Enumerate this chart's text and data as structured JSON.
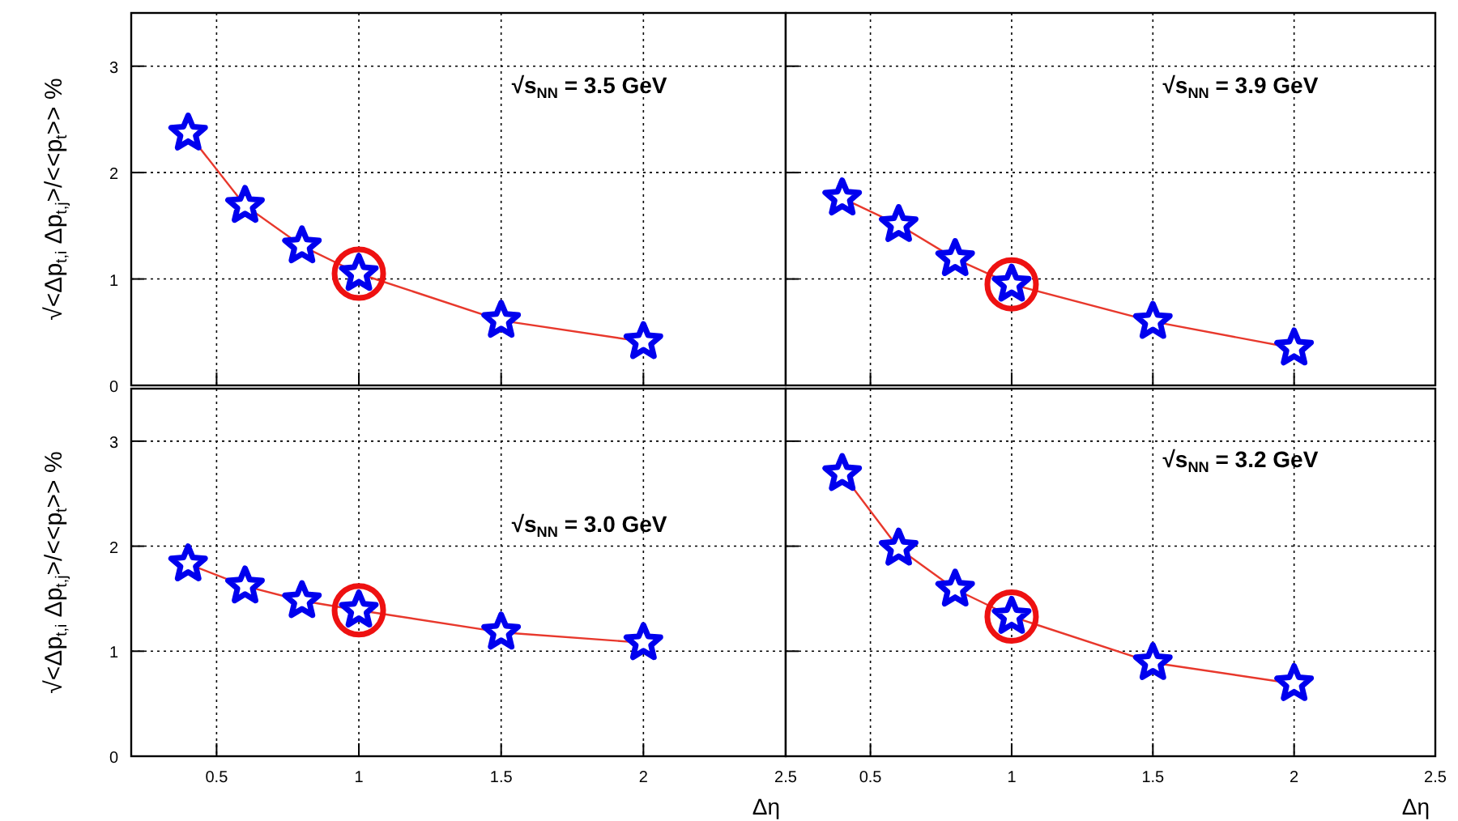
{
  "chart_data": [
    {
      "type": "line",
      "title": "√s$_{NN}$ = 3.5 GeV",
      "ylabel": "√<Δp$_{t,i}$ Δp$_{t,j}$>/<<p$_{t}$>> %",
      "x": [
        0.4,
        0.6,
        0.8,
        1.0,
        1.5,
        2.0
      ],
      "series": [
        {
          "color": "#0000ee",
          "values": [
            2.37,
            1.69,
            1.31,
            1.05,
            0.61,
            0.41
          ]
        }
      ],
      "xlim": [
        0.2,
        2.5
      ],
      "xticks": [
        0.5,
        1,
        1.5,
        2,
        2.5
      ],
      "ylim": [
        0,
        3.5
      ],
      "yticks": [
        0,
        1,
        2,
        3
      ],
      "tick_labels": "y",
      "grid": true,
      "marker": "star"
    },
    {
      "type": "line",
      "title": "√s$_{NN}$ = 3.9 GeV",
      "x": [
        0.4,
        0.6,
        0.8,
        1.0,
        1.5,
        2.0
      ],
      "series": [
        {
          "color": "#0000ee",
          "values": [
            1.76,
            1.51,
            1.19,
            0.95,
            0.6,
            0.35
          ]
        }
      ],
      "xlim": [
        0.2,
        2.5
      ],
      "xticks": [
        0.5,
        1,
        1.5,
        2,
        2.5
      ],
      "ylim": [
        0,
        3.5
      ],
      "yticks": [
        0,
        1,
        2,
        3
      ],
      "tick_labels": false,
      "grid": true,
      "marker": "star"
    },
    {
      "type": "line",
      "title": "√s$_{NN}$ = 3.0 GeV",
      "xlabel": "Δη",
      "ylabel": "√<Δp$_{t,i}$ Δp$_{t,j}$>/<<p$_{t}$>> %",
      "x": [
        0.4,
        0.6,
        0.8,
        1.0,
        1.5,
        2.0
      ],
      "series": [
        {
          "color": "#0000ee",
          "values": [
            1.83,
            1.62,
            1.48,
            1.39,
            1.18,
            1.08
          ]
        }
      ],
      "xlim": [
        0.2,
        2.5
      ],
      "xticks": [
        0.5,
        1,
        1.5,
        2,
        2.5
      ],
      "ylim": [
        0,
        3.5
      ],
      "yticks": [
        0,
        1,
        2,
        3
      ],
      "grid": true,
      "marker": "star"
    },
    {
      "type": "line",
      "title": "√s$_{NN}$ = 3.2 GeV",
      "xlabel": "Δη",
      "x": [
        0.4,
        0.6,
        0.8,
        1.0,
        1.5,
        2.0
      ],
      "series": [
        {
          "color": "#0000ee",
          "values": [
            2.69,
            1.98,
            1.59,
            1.33,
            0.89,
            0.69
          ]
        }
      ],
      "xlim": [
        0.2,
        2.5
      ],
      "xticks": [
        0.5,
        1,
        1.5,
        2,
        2.5
      ],
      "ylim": [
        0,
        3.5
      ],
      "yticks": [
        0,
        1,
        2,
        3
      ],
      "tick_labels": "x",
      "grid": true,
      "marker": "star"
    }
  ]
}
